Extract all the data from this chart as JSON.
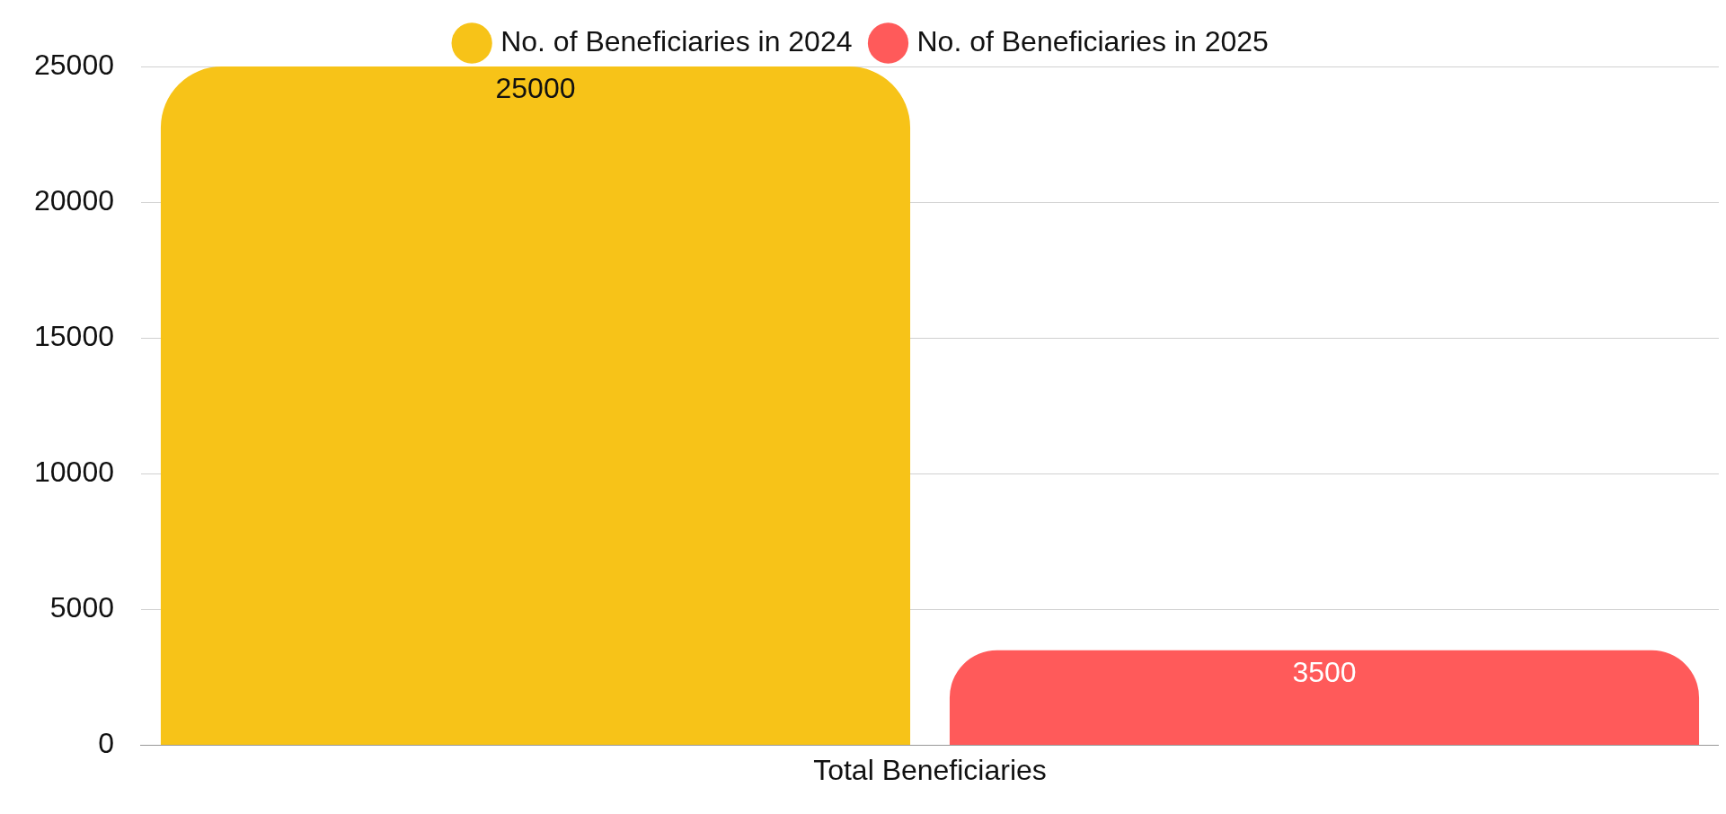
{
  "chart_data": {
    "type": "bar",
    "categories": [
      "Total Beneficiaries"
    ],
    "series": [
      {
        "name": "No. of Beneficiaries in 2024",
        "color": "#f7c318",
        "values": [
          25000
        ]
      },
      {
        "name": "No. of Beneficiaries in 2025",
        "color": "#ff5a5a",
        "values": [
          3500
        ]
      }
    ],
    "ylim": [
      0,
      25000
    ],
    "yticks": [
      0,
      5000,
      10000,
      15000,
      20000,
      25000
    ],
    "grid": "y",
    "legend": "top",
    "data_labels": true
  }
}
